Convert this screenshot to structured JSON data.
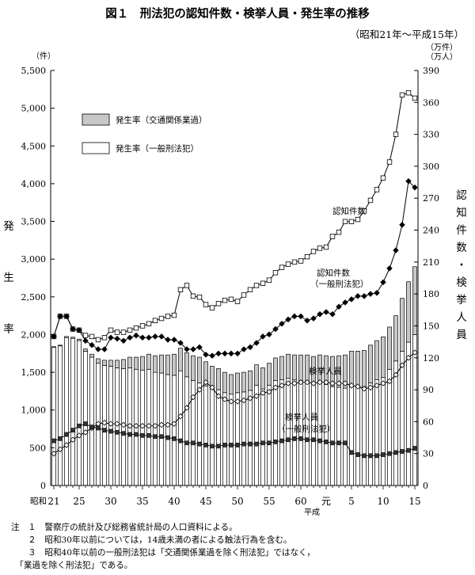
{
  "figure": {
    "title": "図１　刑法犯の認知件数・検挙人員・発生率の推移",
    "subtitle": "（昭和21年〜平成15年）",
    "left_unit": "（件）",
    "right_unit_1": "（万件）",
    "right_unit_2": "（万人）",
    "left_axis_chars": [
      "発",
      "生",
      "率"
    ],
    "right_axis_chars": [
      "認",
      "知",
      "件",
      "数",
      "・",
      "検",
      "挙",
      "人",
      "員"
    ],
    "legend": {
      "traffic": "発生率（交通関係業過）",
      "general": "発生率（一般刑法犯）"
    },
    "labels": {
      "recognized": "認知件数",
      "recognized_general": [
        "認知件数",
        "（一般刑法犯）"
      ],
      "arrests": "検挙人員",
      "arrests_general": [
        "検挙人員",
        "（一般刑法犯）"
      ]
    },
    "showa_label": "昭和",
    "heisei_label": "平成",
    "notes": [
      "注　１　警察庁の統計及び総務省統計局の人口資料による。",
      "　　２　昭和30年以前については，14歳未満の者による触法行為を含む。",
      "　　３　昭和40年以前の一般刑法犯は「交通関係業過を除く刑法犯」ではなく，",
      "　「業過を除く刑法犯」である。"
    ]
  },
  "chart_data": {
    "type": "bar",
    "x": [
      1946,
      1947,
      1948,
      1949,
      1950,
      1951,
      1952,
      1953,
      1954,
      1955,
      1956,
      1957,
      1958,
      1959,
      1960,
      1961,
      1962,
      1963,
      1964,
      1965,
      1966,
      1967,
      1968,
      1969,
      1970,
      1971,
      1972,
      1973,
      1974,
      1975,
      1976,
      1977,
      1978,
      1979,
      1980,
      1981,
      1982,
      1983,
      1984,
      1985,
      1986,
      1987,
      1988,
      1989,
      1990,
      1991,
      1992,
      1993,
      1994,
      1995,
      1996,
      1997,
      1998,
      1999,
      2000,
      2001,
      2002,
      2003
    ],
    "x_tick_labels": [
      "21",
      "25",
      "30",
      "35",
      "40",
      "45",
      "50",
      "55",
      "60",
      "元",
      "5",
      "10",
      "15"
    ],
    "x_tick_years": [
      1946,
      1950,
      1955,
      1960,
      1965,
      1970,
      1975,
      1980,
      1985,
      1989,
      1993,
      1998,
      2003
    ],
    "left_axis": {
      "min": 0,
      "max": 5500,
      "ticks": [
        "0",
        "500",
        "1,000",
        "1,500",
        "2,000",
        "2,500",
        "3,000",
        "3,500",
        "4,000",
        "4,500",
        "5,000",
        "5,500"
      ]
    },
    "right_axis": {
      "min": 0,
      "max": 390,
      "ticks": [
        "0",
        "30",
        "60",
        "90",
        "120",
        "150",
        "180",
        "210",
        "240",
        "270",
        "300",
        "330",
        "360",
        "390"
      ]
    },
    "series": [
      {
        "name": "発生率（一般刑法犯）",
        "kind": "bar",
        "axis": "left",
        "color": "#ffffff",
        "values": [
          1830,
          1850,
          1960,
          1950,
          1920,
          1780,
          1700,
          1620,
          1590,
          1580,
          1560,
          1550,
          1560,
          1540,
          1530,
          1540,
          1500,
          1490,
          1470,
          1460,
          1520,
          1440,
          1390,
          1360,
          1320,
          1280,
          1270,
          1230,
          1210,
          1230,
          1240,
          1260,
          1330,
          1280,
          1330,
          1390,
          1400,
          1420,
          1400,
          1390,
          1380,
          1350,
          1360,
          1340,
          1310,
          1300,
          1290,
          1320,
          1310,
          1310,
          1360,
          1400,
          1430,
          1540,
          1650,
          1780,
          1900,
          2000
        ]
      },
      {
        "name": "発生率（交通関係業過）",
        "kind": "bar",
        "axis": "left",
        "color": "#c8c8c8",
        "values": [
          10,
          10,
          15,
          15,
          20,
          30,
          40,
          60,
          70,
          80,
          100,
          120,
          140,
          160,
          180,
          200,
          220,
          240,
          260,
          280,
          300,
          320,
          330,
          340,
          320,
          300,
          280,
          270,
          260,
          260,
          260,
          260,
          270,
          280,
          290,
          300,
          310,
          320,
          330,
          340,
          350,
          360,
          370,
          380,
          400,
          420,
          440,
          460,
          470,
          480,
          500,
          520,
          540,
          560,
          600,
          700,
          800,
          900
        ]
      },
      {
        "name": "認知件数",
        "kind": "line",
        "axis": "right",
        "marker": "open-square",
        "values": [
          140,
          159,
          159,
          147,
          146,
          141,
          140,
          137,
          139,
          146,
          144,
          144,
          146,
          148,
          150,
          152,
          155,
          157,
          159,
          160,
          184,
          188,
          178,
          177,
          170,
          167,
          171,
          174,
          175,
          173,
          179,
          184,
          188,
          190,
          193,
          200,
          205,
          208,
          210,
          211,
          215,
          220,
          223,
          224,
          234,
          238,
          248,
          248,
          250,
          258,
          268,
          278,
          289,
          304,
          330,
          367,
          369,
          364
        ]
      },
      {
        "name": "認知件数（一般刑法犯）",
        "kind": "line",
        "axis": "right",
        "marker": "filled-diamond",
        "values": [
          140,
          159,
          159,
          147,
          146,
          136,
          132,
          128,
          128,
          139,
          138,
          136,
          139,
          141,
          139,
          139,
          140,
          140,
          137,
          137,
          134,
          128,
          128,
          130,
          123,
          122,
          124,
          124,
          124,
          124,
          128,
          130,
          134,
          140,
          142,
          147,
          152,
          156,
          159,
          159,
          155,
          157,
          161,
          163,
          161,
          168,
          172,
          175,
          178,
          178,
          180,
          181,
          191,
          204,
          221,
          245,
          286,
          280
        ]
      },
      {
        "name": "検挙人員",
        "kind": "line",
        "axis": "right",
        "marker": "open-diamond",
        "values": [
          30,
          34,
          38,
          43,
          47,
          50,
          54,
          58,
          59,
          58,
          58,
          57,
          56,
          56,
          56,
          56,
          56,
          57,
          57,
          58,
          65,
          73,
          83,
          90,
          97,
          92,
          84,
          81,
          79,
          79,
          80,
          82,
          84,
          87,
          88,
          92,
          94,
          96,
          96,
          97,
          97,
          96,
          97,
          97,
          96,
          96,
          96,
          94,
          93,
          91,
          92,
          94,
          96,
          98,
          104,
          113,
          120,
          125
        ]
      },
      {
        "name": "検挙人員（一般刑法犯）",
        "kind": "line",
        "axis": "right",
        "marker": "filled-square",
        "values": [
          42,
          44,
          48,
          52,
          56,
          58,
          55,
          54,
          52,
          51,
          50,
          49,
          48,
          48,
          47,
          47,
          46,
          46,
          45,
          44,
          42,
          40,
          40,
          39,
          38,
          37,
          37,
          38,
          38,
          38,
          39,
          39,
          39,
          40,
          40,
          41,
          42,
          43,
          44,
          44,
          43,
          43,
          42,
          41,
          40,
          40,
          40,
          31,
          29,
          28,
          28,
          28,
          29,
          30,
          31,
          32,
          33,
          35
        ]
      }
    ]
  }
}
